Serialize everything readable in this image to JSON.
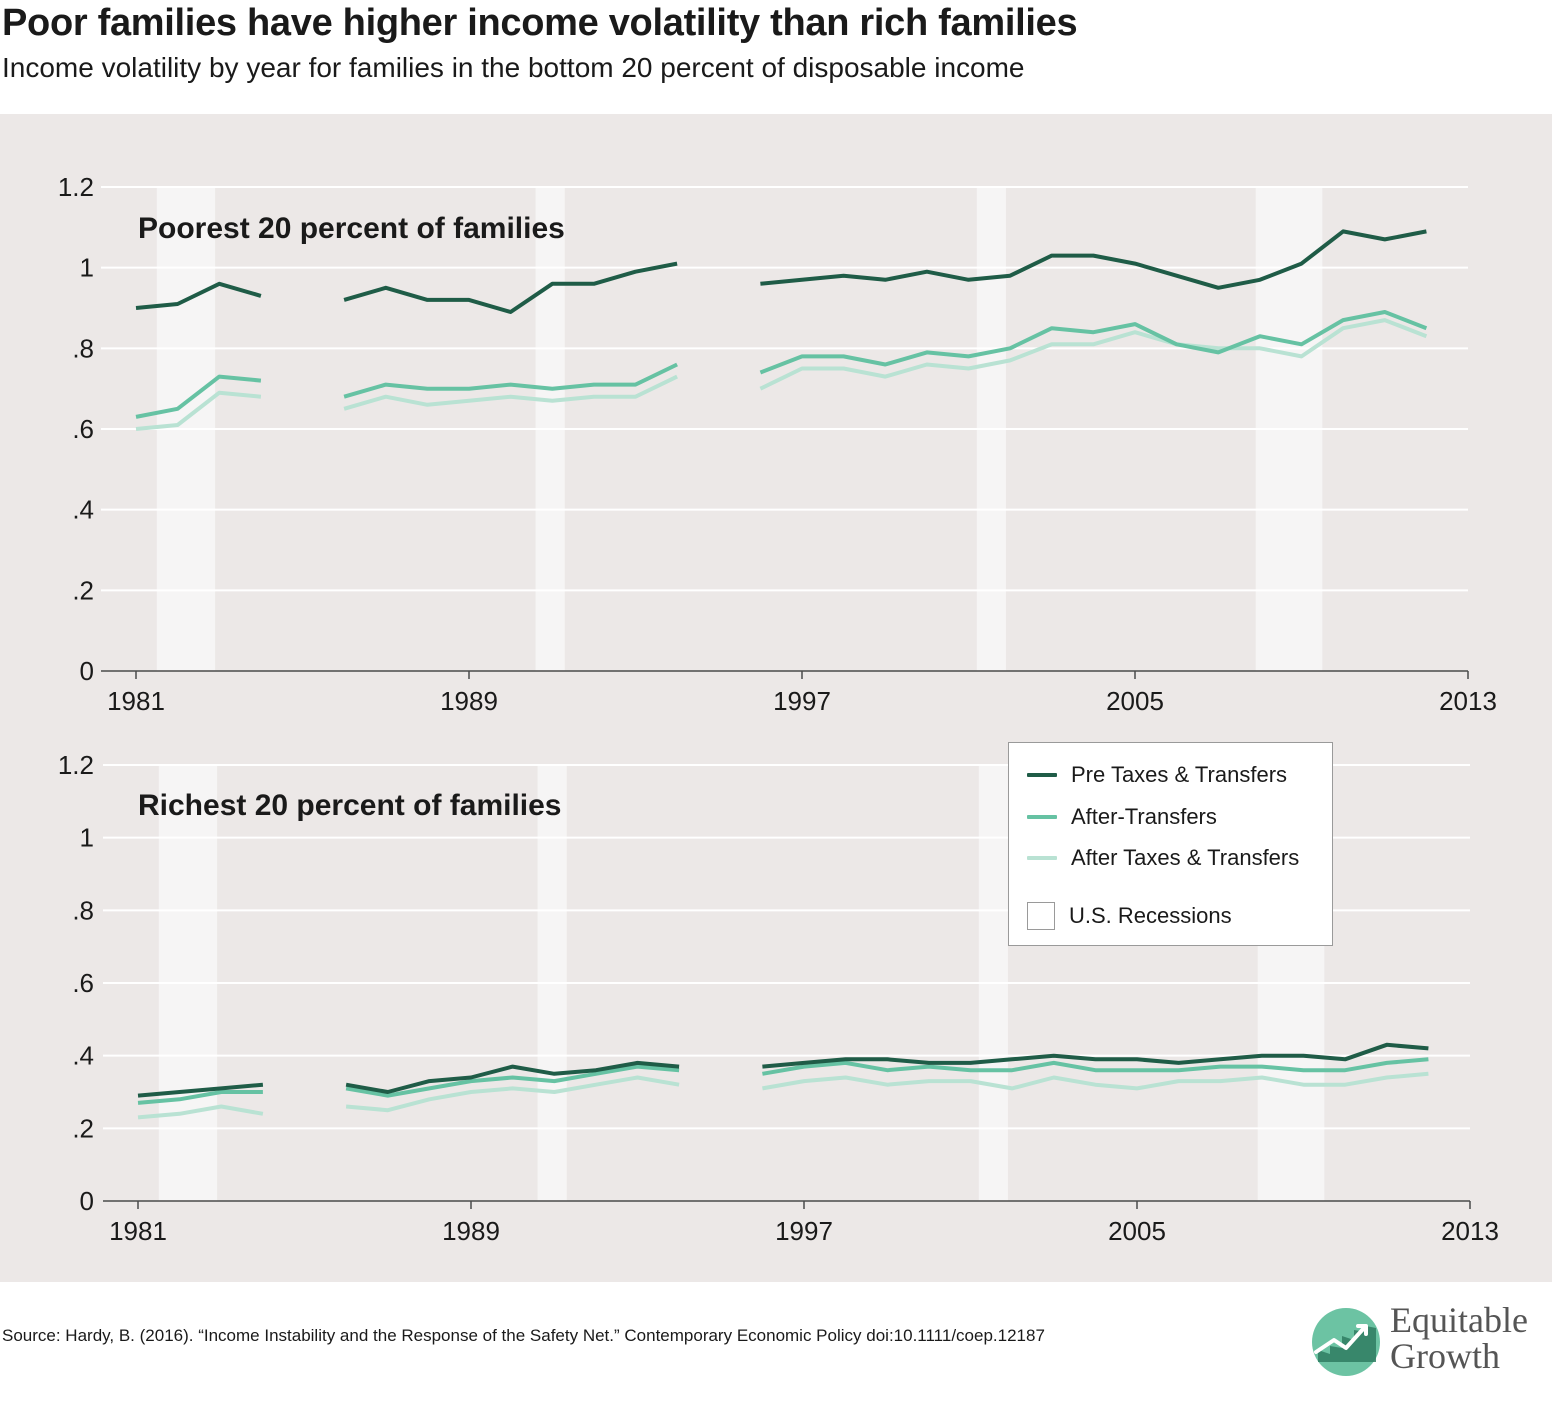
{
  "header": {
    "title": "Poor families have higher income volatility than rich families",
    "subtitle": "Income volatility by year for families in the bottom 20 percent of disposable income"
  },
  "footer": {
    "source": "Source: Hardy, B. (2016). “Income Instability and the Response of the Safety Net.” Contemporary Economic Policy doi:10.1111/coep.12187",
    "logo_line1": "Equitable",
    "logo_line2": "Growth"
  },
  "legend": {
    "items": [
      {
        "label": "Pre Taxes & Transfers",
        "color": "#1f5c47"
      },
      {
        "label": "After-Transfers",
        "color": "#66c2a3"
      },
      {
        "label": "After Taxes & Transfers",
        "color": "#b9e2d3"
      }
    ],
    "recession_label": "U.S. Recessions"
  },
  "chart_data": [
    {
      "type": "line",
      "title": "Poorest 20 percent of families",
      "xlim": [
        1981,
        2013
      ],
      "ylim": [
        0,
        1.2
      ],
      "xticks": [
        1981,
        1989,
        1997,
        2005,
        2013
      ],
      "yticks": [
        0,
        0.2,
        0.4,
        0.6,
        0.8,
        1,
        1.2
      ],
      "ytick_labels": [
        "0",
        ".2",
        ".4",
        ".6",
        ".8",
        "1",
        "1.2"
      ],
      "grid": true,
      "recessions": [
        [
          1981.5,
          1982.9
        ],
        [
          1990.6,
          1991.3
        ],
        [
          2001.2,
          2001.9
        ],
        [
          2007.9,
          2009.5
        ]
      ],
      "series": [
        {
          "name": "Pre Taxes & Transfers",
          "color": "#1f5c47",
          "segments": [
            {
              "x": [
                1981,
                1982,
                1983,
                1984
              ],
              "y": [
                0.9,
                0.91,
                0.96,
                0.93
              ]
            },
            {
              "x": [
                1986,
                1987,
                1988,
                1989,
                1990,
                1991,
                1992,
                1993,
                1994
              ],
              "y": [
                0.92,
                0.95,
                0.92,
                0.92,
                0.89,
                0.96,
                0.96,
                0.99,
                1.01
              ]
            },
            {
              "x": [
                1996,
                1997,
                1998,
                1999,
                2000,
                2001,
                2002,
                2003,
                2004,
                2005,
                2006,
                2007,
                2008,
                2009,
                2010,
                2011,
                2012
              ],
              "y": [
                0.96,
                0.97,
                0.98,
                0.97,
                0.99,
                0.97,
                0.98,
                1.03,
                1.03,
                1.01,
                0.98,
                0.95,
                0.97,
                1.01,
                1.09,
                1.07,
                1.09
              ]
            }
          ]
        },
        {
          "name": "After-Transfers",
          "color": "#66c2a3",
          "segments": [
            {
              "x": [
                1981,
                1982,
                1983,
                1984
              ],
              "y": [
                0.63,
                0.65,
                0.73,
                0.72
              ]
            },
            {
              "x": [
                1986,
                1987,
                1988,
                1989,
                1990,
                1991,
                1992,
                1993,
                1994
              ],
              "y": [
                0.68,
                0.71,
                0.7,
                0.7,
                0.71,
                0.7,
                0.71,
                0.71,
                0.76
              ]
            },
            {
              "x": [
                1996,
                1997,
                1998,
                1999,
                2000,
                2001,
                2002,
                2003,
                2004,
                2005,
                2006,
                2007,
                2008,
                2009,
                2010,
                2011,
                2012
              ],
              "y": [
                0.74,
                0.78,
                0.78,
                0.76,
                0.79,
                0.78,
                0.8,
                0.85,
                0.84,
                0.86,
                0.81,
                0.79,
                0.83,
                0.81,
                0.87,
                0.89,
                0.85
              ]
            }
          ]
        },
        {
          "name": "After Taxes & Transfers",
          "color": "#b9e2d3",
          "segments": [
            {
              "x": [
                1981,
                1982,
                1983,
                1984
              ],
              "y": [
                0.6,
                0.61,
                0.69,
                0.68
              ]
            },
            {
              "x": [
                1986,
                1987,
                1988,
                1989,
                1990,
                1991,
                1992,
                1993,
                1994
              ],
              "y": [
                0.65,
                0.68,
                0.66,
                0.67,
                0.68,
                0.67,
                0.68,
                0.68,
                0.73
              ]
            },
            {
              "x": [
                1996,
                1997,
                1998,
                1999,
                2000,
                2001,
                2002,
                2003,
                2004,
                2005,
                2006,
                2007,
                2008,
                2009,
                2010,
                2011,
                2012
              ],
              "y": [
                0.7,
                0.75,
                0.75,
                0.73,
                0.76,
                0.75,
                0.77,
                0.81,
                0.81,
                0.84,
                0.81,
                0.8,
                0.8,
                0.78,
                0.85,
                0.87,
                0.83
              ]
            }
          ]
        }
      ]
    },
    {
      "type": "line",
      "title": "Richest 20 percent of families",
      "xlim": [
        1981,
        2013
      ],
      "ylim": [
        0,
        1.2
      ],
      "xticks": [
        1981,
        1989,
        1997,
        2005,
        2013
      ],
      "yticks": [
        0,
        0.2,
        0.4,
        0.6,
        0.8,
        1,
        1.2
      ],
      "ytick_labels": [
        "0",
        ".2",
        ".4",
        ".6",
        ".8",
        "1",
        "1.2"
      ],
      "grid": true,
      "recessions": [
        [
          1981.5,
          1982.9
        ],
        [
          1990.6,
          1991.3
        ],
        [
          2001.2,
          2001.9
        ],
        [
          2007.9,
          2009.5
        ]
      ],
      "series": [
        {
          "name": "Pre Taxes & Transfers",
          "color": "#1f5c47",
          "segments": [
            {
              "x": [
                1981,
                1982,
                1983,
                1984
              ],
              "y": [
                0.29,
                0.3,
                0.31,
                0.32
              ]
            },
            {
              "x": [
                1986,
                1987,
                1988,
                1989,
                1990,
                1991,
                1992,
                1993,
                1994
              ],
              "y": [
                0.32,
                0.3,
                0.33,
                0.34,
                0.37,
                0.35,
                0.36,
                0.38,
                0.37
              ]
            },
            {
              "x": [
                1996,
                1997,
                1998,
                1999,
                2000,
                2001,
                2002,
                2003,
                2004,
                2005,
                2006,
                2007,
                2008,
                2009,
                2010,
                2011,
                2012
              ],
              "y": [
                0.37,
                0.38,
                0.39,
                0.39,
                0.38,
                0.38,
                0.39,
                0.4,
                0.39,
                0.39,
                0.38,
                0.39,
                0.4,
                0.4,
                0.39,
                0.43,
                0.42
              ]
            }
          ]
        },
        {
          "name": "After-Transfers",
          "color": "#66c2a3",
          "segments": [
            {
              "x": [
                1981,
                1982,
                1983,
                1984
              ],
              "y": [
                0.27,
                0.28,
                0.3,
                0.3
              ]
            },
            {
              "x": [
                1986,
                1987,
                1988,
                1989,
                1990,
                1991,
                1992,
                1993,
                1994
              ],
              "y": [
                0.31,
                0.29,
                0.31,
                0.33,
                0.34,
                0.33,
                0.35,
                0.37,
                0.36
              ]
            },
            {
              "x": [
                1996,
                1997,
                1998,
                1999,
                2000,
                2001,
                2002,
                2003,
                2004,
                2005,
                2006,
                2007,
                2008,
                2009,
                2010,
                2011,
                2012
              ],
              "y": [
                0.35,
                0.37,
                0.38,
                0.36,
                0.37,
                0.36,
                0.36,
                0.38,
                0.36,
                0.36,
                0.36,
                0.37,
                0.37,
                0.36,
                0.36,
                0.38,
                0.39
              ]
            }
          ]
        },
        {
          "name": "After Taxes & Transfers",
          "color": "#b9e2d3",
          "segments": [
            {
              "x": [
                1981,
                1982,
                1983,
                1984
              ],
              "y": [
                0.23,
                0.24,
                0.26,
                0.24
              ]
            },
            {
              "x": [
                1986,
                1987,
                1988,
                1989,
                1990,
                1991,
                1992,
                1993,
                1994
              ],
              "y": [
                0.26,
                0.25,
                0.28,
                0.3,
                0.31,
                0.3,
                0.32,
                0.34,
                0.32
              ]
            },
            {
              "x": [
                1996,
                1997,
                1998,
                1999,
                2000,
                2001,
                2002,
                2003,
                2004,
                2005,
                2006,
                2007,
                2008,
                2009,
                2010,
                2011,
                2012
              ],
              "y": [
                0.31,
                0.33,
                0.34,
                0.32,
                0.33,
                0.33,
                0.31,
                0.34,
                0.32,
                0.31,
                0.33,
                0.33,
                0.34,
                0.32,
                0.32,
                0.34,
                0.35
              ]
            }
          ]
        }
      ]
    }
  ]
}
